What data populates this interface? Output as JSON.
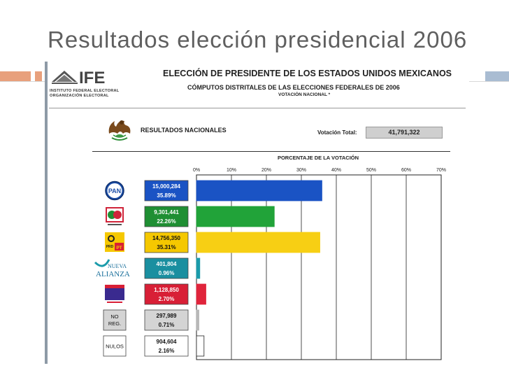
{
  "slide": {
    "title": "Resultados elección presidencial 2006"
  },
  "header": {
    "logo_text": "IFE",
    "logo_sub_1": "INSTITUTO FEDERAL ELECTORAL",
    "logo_sub_2": "ORGANIZACIÓN ELECTORAL",
    "title": "ELECCIÓN DE PRESIDENTE DE LOS ESTADOS UNIDOS MEXICANOS",
    "subtitle": "CÓMPUTOS DISTRITALES DE LAS ELECCIONES FEDERALES DE 2006",
    "sub_subtitle": "VOTACIÓN NACIONAL *"
  },
  "results": {
    "label": "RESULTADOS NACIONALES",
    "total_label": "Votación Total:",
    "total_value": "41,791,322"
  },
  "chart_data": {
    "type": "bar",
    "orientation": "horizontal",
    "title": "PORCENTAJE DE LA VOTACIÓN",
    "x_ticks": [
      "0%",
      "10%",
      "20%",
      "30%",
      "40%",
      "50%",
      "60%",
      "70%"
    ],
    "xlim": [
      0,
      70
    ],
    "grid": true,
    "rows": [
      {
        "label": "PAN",
        "votes": "15,000,284",
        "percent_label": "35.89%",
        "value": 35.89,
        "color": "#1a53c4",
        "label_box": "#1a53c4",
        "logo": "pan-logo"
      },
      {
        "label": "",
        "votes": "9,301,441",
        "percent_label": "22.26%",
        "value": 22.26,
        "color": "#21a339",
        "label_box": "#1f8f33",
        "logo": "alianza-por-mexico-logo"
      },
      {
        "label": "PRD PT",
        "votes": "14,756,350",
        "percent_label": "35.31%",
        "value": 35.31,
        "color": "#f7cf14",
        "label_box": "#f5c800",
        "logo": "por-el-bien-de-todos-logo"
      },
      {
        "label": "NUEVA ALIANZA",
        "votes": "401,804",
        "percent_label": "0.96%",
        "value": 0.96,
        "color": "#1a9bab",
        "label_box": "#1a8fa0",
        "logo": "nueva-alianza-logo"
      },
      {
        "label": "",
        "votes": "1,128,850",
        "percent_label": "2.70%",
        "value": 2.7,
        "color": "#e0243b",
        "label_box": "#d81f36",
        "logo": "alternativa-logo"
      },
      {
        "label": "NO REG.",
        "votes": "297,989",
        "percent_label": "0.71%",
        "value": 0.71,
        "color": "#b8b8b8",
        "label_box": "#d4d4d4",
        "logo": "no-registrados-box"
      },
      {
        "label": "NULOS",
        "votes": "904,604",
        "percent_label": "2.16%",
        "value": 2.16,
        "color": "#ffffff",
        "label_box": "#ffffff",
        "logo": "nulos-box"
      }
    ]
  }
}
